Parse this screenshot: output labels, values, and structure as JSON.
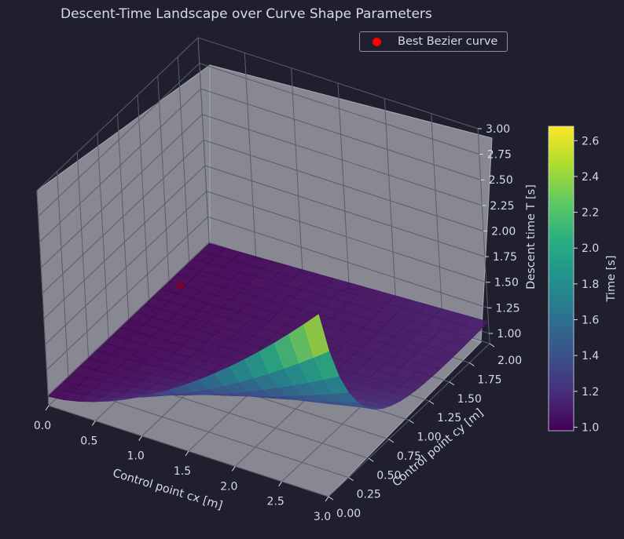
{
  "chart_data": {
    "type": "surface3d",
    "title": "Descent-Time Landscape over Curve Shape Parameters",
    "xlabel": "Control point cx [m]",
    "ylabel": "Control point cy [m]",
    "zlabel": "Descent time T [s]",
    "xlim": [
      0.0,
      3.0
    ],
    "ylim": [
      0.0,
      2.0
    ],
    "zlim": [
      0.9,
      3.0
    ],
    "x_ticks": [
      "0.0",
      "0.5",
      "1.0",
      "1.5",
      "2.0",
      "2.5",
      "3.0"
    ],
    "y_ticks": [
      "0.00",
      "0.25",
      "0.50",
      "0.75",
      "1.00",
      "1.25",
      "1.50",
      "1.75",
      "2.00"
    ],
    "z_ticks": [
      "1.00",
      "1.25",
      "1.50",
      "1.75",
      "2.00",
      "2.25",
      "2.50",
      "2.75",
      "3.00"
    ],
    "colorbar": {
      "label": "Time [s]",
      "range": [
        0.98,
        2.68
      ],
      "ticks": [
        "1.0",
        "1.2",
        "1.4",
        "1.6",
        "1.8",
        "2.0",
        "2.2",
        "2.4",
        "2.6"
      ],
      "colormap": "viridis"
    },
    "legend": {
      "entries": [
        "Best Bezier curve"
      ],
      "placement": "top-right",
      "marker_color": "#ff0000"
    },
    "best_point": {
      "cx": 0.12,
      "cy": 1.5,
      "T": 0.99
    },
    "surface": {
      "cx_range": [
        0.0,
        3.0
      ],
      "cy_range": [
        0.0,
        2.0
      ],
      "T_min": 0.99,
      "T_max": 2.68,
      "max_at": {
        "cx": 3.0,
        "cy": 0.0
      },
      "note_shape": "low near cx=0, rises toward cx=3 at cy=0"
    },
    "grid": true
  },
  "colors": {
    "background": "#1f1f2e",
    "pane": "#878892",
    "grid": "#5b5d6a",
    "text": "#d6d9ec"
  }
}
